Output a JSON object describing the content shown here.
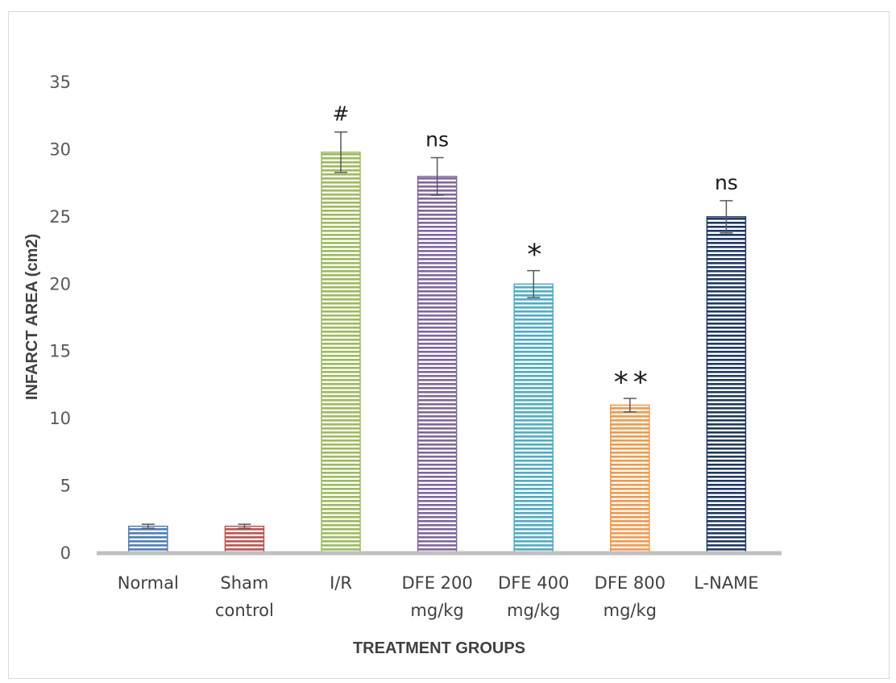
{
  "chart_data": {
    "type": "bar",
    "title": "",
    "xlabel": "TREATMENT GROUPS",
    "ylabel": "INFARCT AREA (cm2)",
    "ylim": [
      0,
      35
    ],
    "yticks": [
      "0",
      "5",
      "10",
      "15",
      "20",
      "25",
      "30",
      "35"
    ],
    "grid": false,
    "categories": [
      [
        "Normal"
      ],
      [
        "Sham",
        "control"
      ],
      [
        "I/R"
      ],
      [
        "DFE 200",
        "mg/kg"
      ],
      [
        "DFE 400",
        "mg/kg"
      ],
      [
        "DFE 800",
        "mg/kg"
      ],
      [
        "L-NAME"
      ]
    ],
    "values": [
      2,
      2,
      29.8,
      28,
      20,
      11,
      25
    ],
    "errors": [
      0.15,
      0.15,
      1.5,
      1.4,
      1.0,
      0.5,
      1.2
    ],
    "annotations": [
      "",
      "",
      "#",
      "ns",
      "*",
      "**",
      "ns"
    ],
    "colors": [
      "#4a7ebb",
      "#c0504d",
      "#9bbb59",
      "#8064a2",
      "#4bacc6",
      "#f79646",
      "#1f3864"
    ]
  }
}
